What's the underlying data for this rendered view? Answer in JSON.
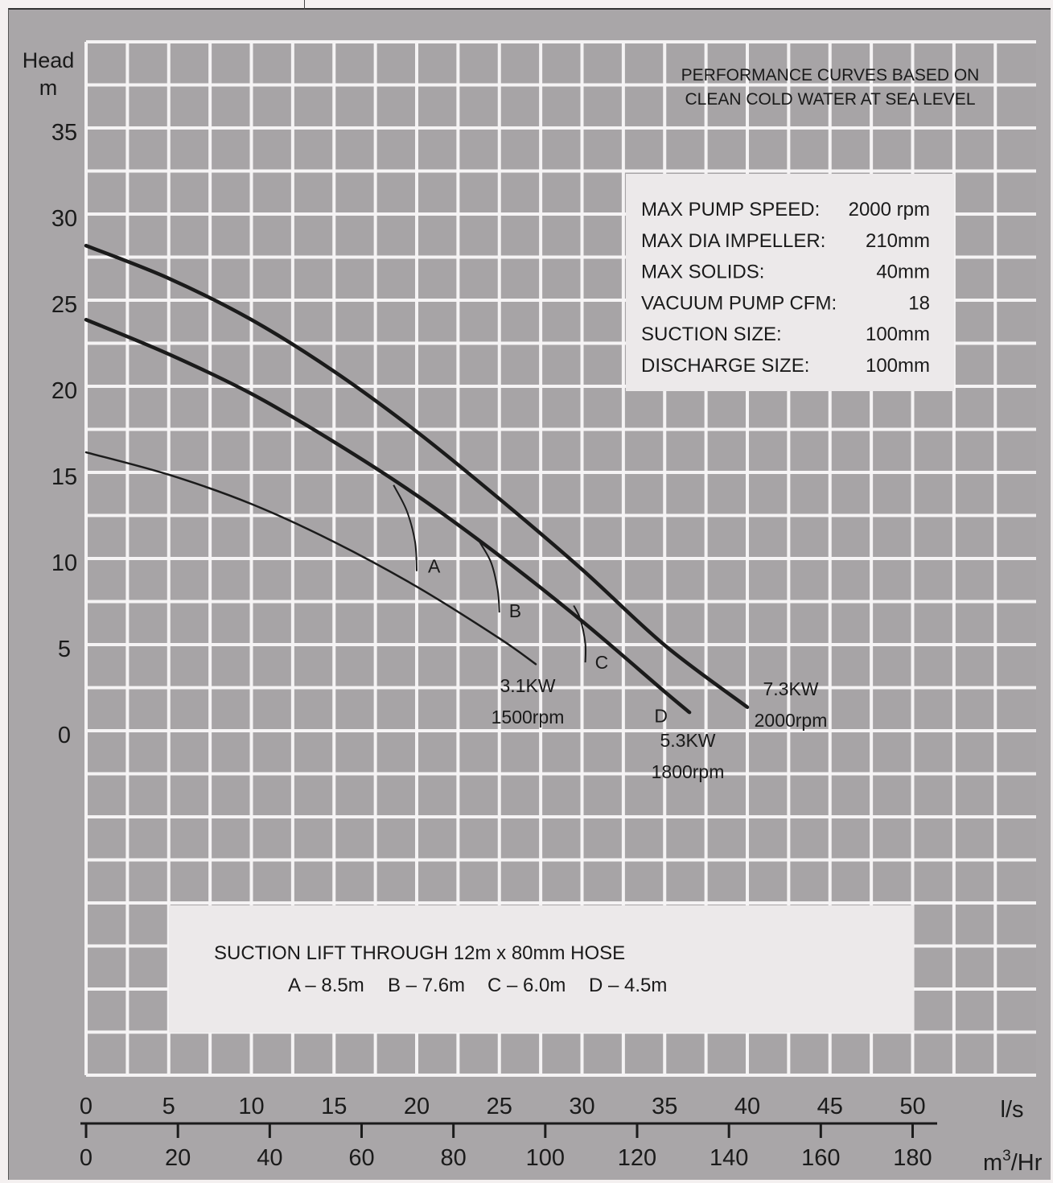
{
  "chart_data": {
    "type": "line",
    "ylabel_line1": "Head",
    "ylabel_line2": "m",
    "yticks": [
      0,
      5,
      10,
      15,
      20,
      25,
      30,
      35
    ],
    "ylim": [
      0,
      35
    ],
    "xlim": [
      0,
      50
    ],
    "xlabel_ls": "l/s",
    "xlabel_m3hr_base": "m",
    "xlabel_m3hr_sup": "3",
    "xlabel_m3hr_tail": "/Hr",
    "xticks_ls": [
      0,
      5,
      10,
      15,
      20,
      25,
      30,
      35,
      40,
      45,
      50
    ],
    "xticks_m3hr": [
      0,
      20,
      40,
      60,
      80,
      100,
      120,
      140,
      160,
      180
    ],
    "grid": true,
    "note_line1": "PERFORMANCE CURVES BASED ON",
    "note_line2": "CLEAN COLD WATER AT SEA LEVEL",
    "series": [
      {
        "label_line1": "7.3KW",
        "label_line2": "2000rpm",
        "x": [
          0,
          5,
          10,
          15,
          20,
          25,
          30,
          35,
          40
        ],
        "y": [
          28.4,
          26.5,
          24.1,
          21.1,
          17.6,
          13.7,
          9.6,
          5.2,
          1.6
        ]
      },
      {
        "label_line1": "5.3KW",
        "label_line2": "1800rpm",
        "x": [
          0,
          5,
          10,
          15,
          20,
          25,
          30,
          35,
          36.5
        ],
        "y": [
          24.1,
          22.1,
          19.8,
          17.0,
          13.9,
          10.4,
          6.6,
          2.5,
          1.3
        ]
      },
      {
        "label_line1": "3.1KW",
        "label_line2": "1500rpm",
        "x": [
          0,
          5,
          10,
          15,
          20,
          25,
          27.2
        ],
        "y": [
          16.4,
          15.1,
          13.4,
          11.2,
          8.6,
          5.6,
          4.1
        ]
      }
    ],
    "suction_curves": [
      {
        "label": "A",
        "x": [
          18.6,
          19.4,
          19.9,
          20.0
        ],
        "y": [
          14.5,
          13.0,
          11.2,
          9.5
        ]
      },
      {
        "label": "B",
        "x": [
          23.8,
          24.5,
          24.9,
          25.0
        ],
        "y": [
          11.2,
          10.0,
          8.4,
          7.1
        ]
      },
      {
        "label": "C",
        "x": [
          29.5,
          29.9,
          30.2,
          30.2
        ],
        "y": [
          7.5,
          6.7,
          5.3,
          4.2
        ]
      },
      {
        "label": "D",
        "x": [],
        "y": []
      }
    ]
  },
  "specs": [
    {
      "label": "MAX PUMP SPEED:",
      "value": "2000 rpm"
    },
    {
      "label": "MAX DIA IMPELLER:",
      "value": "210mm"
    },
    {
      "label": "MAX SOLIDS:",
      "value": "40mm"
    },
    {
      "label": "VACUUM PUMP CFM:",
      "value": "18"
    },
    {
      "label": "SUCTION SIZE:",
      "value": "100mm"
    },
    {
      "label": "DISCHARGE SIZE:",
      "value": "100mm"
    }
  ],
  "suction": {
    "title": "SUCTION LIFT THROUGH 12m x 80mm HOSE",
    "items": [
      "A – 8.5m",
      "B – 7.6m",
      "C – 6.0m",
      "D – 4.5m"
    ]
  }
}
